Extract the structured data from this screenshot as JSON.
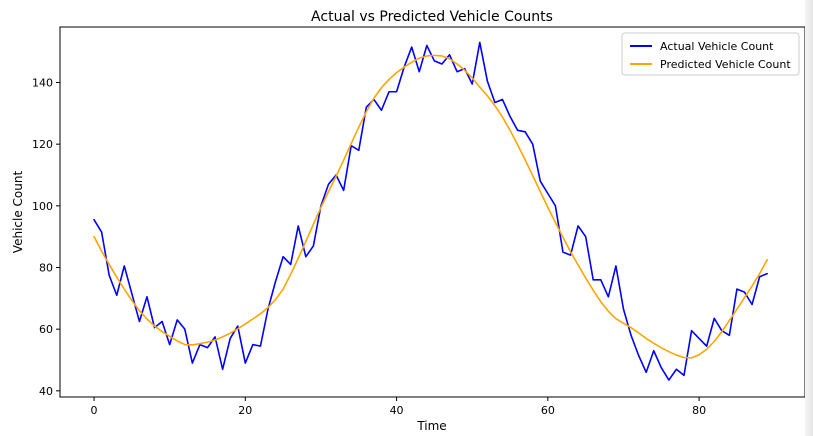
{
  "chart_data": {
    "type": "line",
    "title": "Actual vs Predicted Vehicle Counts",
    "xlabel": "Time",
    "ylabel": "Vehicle Count",
    "xlim": [
      -4.5,
      94
    ],
    "ylim": [
      38,
      158
    ],
    "xticks": [
      0,
      20,
      40,
      60,
      80
    ],
    "yticks": [
      40,
      60,
      80,
      100,
      120,
      140
    ],
    "grid": false,
    "legend_position": "upper-right",
    "x": [
      0,
      1,
      2,
      3,
      4,
      5,
      6,
      7,
      8,
      9,
      10,
      11,
      12,
      13,
      14,
      15,
      16,
      17,
      18,
      19,
      20,
      21,
      22,
      23,
      24,
      25,
      26,
      27,
      28,
      29,
      30,
      31,
      32,
      33,
      34,
      35,
      36,
      37,
      38,
      39,
      40,
      41,
      42,
      43,
      44,
      45,
      46,
      47,
      48,
      49,
      50,
      51,
      52,
      53,
      54,
      55,
      56,
      57,
      58,
      59,
      60,
      61,
      62,
      63,
      64,
      65,
      66,
      67,
      68,
      69,
      70,
      71,
      72,
      73,
      74,
      75,
      76,
      77,
      78,
      79,
      80,
      81,
      82,
      83,
      84,
      85,
      86,
      87,
      88,
      89
    ],
    "series": [
      {
        "name": "Actual Vehicle Count",
        "color": "#0000ff",
        "values": [
          95.5,
          91.5,
          77.5,
          71,
          80.5,
          71.5,
          62.5,
          70.5,
          60.5,
          62.5,
          55,
          63,
          60,
          49,
          55,
          54,
          57.5,
          47,
          57,
          61,
          49,
          55,
          54.5,
          66.5,
          75.5,
          83.5,
          81,
          93.5,
          83.5,
          87,
          100,
          107,
          110,
          105,
          119.5,
          118,
          132,
          134.5,
          131,
          137,
          137,
          145,
          151.5,
          143.5,
          152,
          147,
          146,
          149,
          143.5,
          144.5,
          139.5,
          153,
          140.5,
          133.5,
          134.5,
          129,
          124.5,
          124,
          120,
          108,
          104,
          100,
          85,
          84,
          93.5,
          90,
          76,
          76,
          70.5,
          80.5,
          66.5,
          58,
          51.5,
          46,
          53,
          47.5,
          43.5,
          47,
          45,
          59.5,
          57,
          54.5,
          63.5,
          59.5,
          58,
          73,
          72,
          68,
          77,
          78
        ]
      },
      {
        "name": "Predicted Vehicle Count",
        "color": "#ffa500",
        "values": [
          90,
          85.3,
          81,
          76.9,
          73,
          69.3,
          66,
          63.3,
          61,
          59.2,
          57.7,
          56.2,
          55,
          54.9,
          55.3,
          55.8,
          56.5,
          57.5,
          58.7,
          60.1,
          61.7,
          63.3,
          65,
          67,
          69.6,
          73,
          77.8,
          83,
          88.4,
          94,
          99.5,
          104.6,
          109.6,
          114.8,
          120.2,
          125.5,
          130.5,
          134.9,
          138.3,
          141,
          143.2,
          145,
          146.6,
          147.9,
          148.6,
          148.8,
          148.6,
          147.7,
          146,
          144,
          141.5,
          138.5,
          135.7,
          132.5,
          128.8,
          124.5,
          119.8,
          114.9,
          109.8,
          104.6,
          99.5,
          94.6,
          89.8,
          85.1,
          80.8,
          76.6,
          72.6,
          68.9,
          65.8,
          63.4,
          61.9,
          60.5,
          58.8,
          57,
          55.4,
          54,
          52.7,
          51.6,
          50.8,
          50.7,
          51.7,
          53.5,
          56,
          59.2,
          62.8,
          66.5,
          70.2,
          74,
          78,
          82.5
        ]
      }
    ]
  }
}
